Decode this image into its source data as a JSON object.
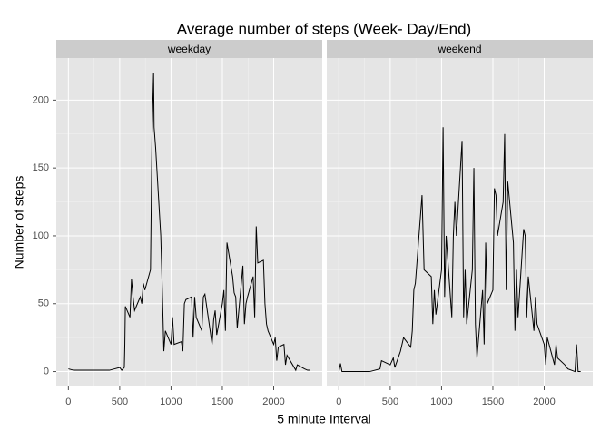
{
  "chart_data": {
    "type": "line",
    "facet": true,
    "title": "Average number of steps (Week- Day/End)",
    "x_label": "5 minute Interval",
    "y_label": "Number of steps",
    "xlim": [
      -118,
      2473
    ],
    "xticks": [
      0,
      500,
      1000,
      1500,
      2000
    ],
    "ylim": [
      -11,
      231
    ],
    "yticks": [
      0,
      50,
      100,
      150,
      200
    ],
    "grid": true,
    "series": [
      {
        "name": "weekday",
        "color": "#000000",
        "x": [
          0,
          50,
          100,
          200,
          300,
          400,
          450,
          500,
          520,
          545,
          550,
          555,
          600,
          615,
          630,
          645,
          700,
          715,
          730,
          745,
          800,
          815,
          830,
          835,
          850,
          900,
          915,
          930,
          945,
          1000,
          1015,
          1030,
          1100,
          1115,
          1130,
          1145,
          1200,
          1215,
          1230,
          1245,
          1300,
          1315,
          1330,
          1400,
          1415,
          1430,
          1445,
          1500,
          1515,
          1530,
          1545,
          1600,
          1615,
          1630,
          1645,
          1700,
          1715,
          1730,
          1745,
          1800,
          1815,
          1830,
          1845,
          1900,
          1915,
          1930,
          1945,
          2000,
          2015,
          2030,
          2045,
          2100,
          2115,
          2130,
          2200,
          2215,
          2230,
          2300,
          2330,
          2355
        ],
        "values": [
          2,
          1,
          1,
          1,
          1,
          1,
          2,
          3,
          1,
          3,
          20,
          48,
          40,
          68,
          55,
          45,
          55,
          50,
          65,
          60,
          75,
          175,
          220,
          180,
          165,
          100,
          60,
          15,
          30,
          20,
          40,
          20,
          22,
          15,
          50,
          53,
          55,
          25,
          55,
          40,
          30,
          55,
          57,
          20,
          38,
          45,
          27,
          50,
          60,
          30,
          95,
          70,
          58,
          55,
          32,
          78,
          35,
          50,
          55,
          70,
          40,
          107,
          80,
          82,
          50,
          35,
          30,
          20,
          25,
          8,
          18,
          20,
          5,
          12,
          3,
          1,
          5,
          2,
          1,
          1
        ]
      },
      {
        "name": "weekend",
        "color": "#000000",
        "x": [
          0,
          15,
          30,
          100,
          200,
          300,
          400,
          415,
          500,
          530,
          545,
          600,
          630,
          700,
          715,
          730,
          745,
          800,
          810,
          830,
          900,
          915,
          930,
          945,
          1000,
          1015,
          1030,
          1045,
          1100,
          1115,
          1130,
          1145,
          1200,
          1215,
          1230,
          1245,
          1300,
          1315,
          1330,
          1345,
          1400,
          1415,
          1430,
          1445,
          1500,
          1515,
          1530,
          1545,
          1600,
          1615,
          1630,
          1645,
          1700,
          1715,
          1730,
          1745,
          1800,
          1815,
          1830,
          1845,
          1900,
          1915,
          1930,
          2000,
          2015,
          2030,
          2100,
          2115,
          2130,
          2200,
          2230,
          2300,
          2315,
          2330,
          2355
        ],
        "values": [
          0,
          6,
          0,
          0,
          0,
          0,
          2,
          8,
          5,
          10,
          3,
          15,
          25,
          18,
          30,
          60,
          65,
          120,
          130,
          75,
          70,
          35,
          60,
          42,
          75,
          180,
          55,
          100,
          40,
          100,
          125,
          100,
          170,
          40,
          75,
          35,
          75,
          150,
          35,
          10,
          60,
          20,
          95,
          50,
          60,
          135,
          130,
          100,
          125,
          175,
          60,
          140,
          95,
          30,
          75,
          40,
          105,
          100,
          40,
          70,
          30,
          55,
          35,
          20,
          5,
          25,
          5,
          20,
          10,
          5,
          2,
          0,
          20,
          0,
          0
        ]
      }
    ]
  }
}
